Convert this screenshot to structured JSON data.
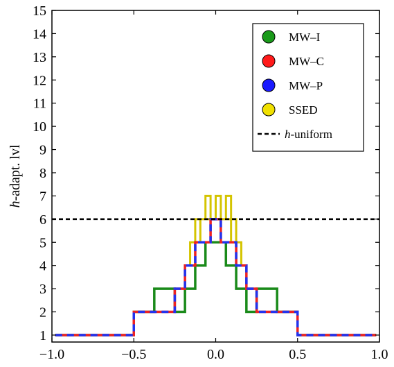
{
  "chart_data": {
    "type": "line",
    "xlabel": "",
    "ylabel": "h-adapt. lvl",
    "ylabel_italic_prefix": "h",
    "ylabel_rest": "-adapt. lvl",
    "xlim": [
      -1.0,
      1.0
    ],
    "ylim": [
      0.7,
      15.0
    ],
    "xticks": [
      -1.0,
      -0.5,
      0.0,
      0.5,
      1.0
    ],
    "xtick_labels": [
      "−1.0",
      "−0.5",
      "0.0",
      "0.5",
      "1.0"
    ],
    "yticks": [
      1,
      2,
      3,
      4,
      5,
      6,
      7,
      8,
      9,
      10,
      11,
      12,
      13,
      14,
      15
    ],
    "ytick_labels": [
      "1",
      "2",
      "3",
      "4",
      "5",
      "6",
      "7",
      "8",
      "9",
      "10",
      "11",
      "12",
      "13",
      "14",
      "15"
    ],
    "grid": false,
    "legend_position": "top-right",
    "series": [
      {
        "name": "MW–I",
        "color": "#1a8a1a",
        "style": "solid",
        "width": 3.5,
        "marker_color": "#1a9a1a",
        "x": [
          -0.98,
          -0.5,
          -0.5,
          -0.375,
          -0.375,
          -0.25,
          -0.25,
          -0.1875,
          -0.1875,
          -0.125,
          -0.125,
          -0.0625,
          -0.0625,
          0.0625,
          0.0625,
          0.125,
          0.125,
          0.1875,
          0.1875,
          0.25,
          0.25,
          0.375,
          0.375,
          0.5,
          0.5,
          0.98
        ],
        "y": [
          1,
          1,
          2,
          2,
          3,
          3,
          2,
          2,
          3,
          3,
          4,
          4,
          5,
          5,
          4,
          4,
          3,
          3,
          2,
          2,
          3,
          3,
          2,
          2,
          1,
          1
        ]
      },
      {
        "name": "SSED",
        "color": "#d4c400",
        "style": "solid",
        "width": 3,
        "marker_color": "#f0e000",
        "x": [
          -0.09375,
          -0.09375,
          -0.0625,
          -0.0625,
          -0.03125,
          -0.03125,
          0.0,
          0.0,
          0.03125,
          0.03125,
          0.0625,
          0.0625,
          0.09375,
          0.09375,
          0.125,
          0.125,
          0.15625,
          0.15625,
          0.125,
          0.125,
          0.09375,
          0.09375,
          -0.09375,
          -0.09375,
          -0.125,
          -0.125,
          -0.15625,
          -0.15625,
          -0.125,
          -0.125,
          -0.09375
        ],
        "y": [
          5,
          6,
          6,
          7,
          7,
          6,
          6,
          7,
          7,
          6,
          6,
          7,
          7,
          6,
          6,
          5,
          5,
          4,
          4,
          5,
          5,
          6,
          6,
          5,
          5,
          4,
          4,
          5,
          5,
          6,
          6
        ]
      },
      {
        "name": "MW–C",
        "color": "#ee2222",
        "style": "solid",
        "width": 3.5,
        "marker_color": "#ff1a1a",
        "x": [
          -0.98,
          -0.5,
          -0.5,
          -0.25,
          -0.25,
          -0.1875,
          -0.1875,
          -0.125,
          -0.125,
          -0.0625,
          -0.0625,
          -0.03125,
          -0.03125,
          0.03125,
          0.03125,
          0.0625,
          0.0625,
          0.125,
          0.125,
          0.1875,
          0.1875,
          0.25,
          0.25,
          0.5,
          0.5,
          0.98
        ],
        "y": [
          1,
          1,
          2,
          2,
          3,
          3,
          4,
          4,
          5,
          5,
          5,
          5,
          6,
          6,
          5,
          5,
          5,
          5,
          4,
          4,
          3,
          3,
          2,
          2,
          1,
          1
        ]
      },
      {
        "name": "MW–P",
        "color": "#2233ee",
        "style": "dashed",
        "width": 3.5,
        "marker_color": "#1a1aff",
        "x": [
          -0.98,
          -0.5,
          -0.5,
          -0.25,
          -0.25,
          -0.1875,
          -0.1875,
          -0.125,
          -0.125,
          -0.0625,
          -0.0625,
          -0.03125,
          -0.03125,
          0.03125,
          0.03125,
          0.0625,
          0.0625,
          0.125,
          0.125,
          0.1875,
          0.1875,
          0.25,
          0.25,
          0.5,
          0.5,
          0.98
        ],
        "y": [
          1,
          1,
          2,
          2,
          3,
          3,
          4,
          4,
          5,
          5,
          5,
          5,
          6,
          6,
          5,
          5,
          5,
          5,
          4,
          4,
          3,
          3,
          2,
          2,
          1,
          1
        ]
      },
      {
        "name": "h-uniform",
        "name_italic_prefix": "h",
        "name_rest": "-uniform",
        "color": "#000000",
        "style": "dotted",
        "width": 2.5,
        "x": [
          -1.0,
          1.0
        ],
        "y": [
          6,
          6
        ]
      }
    ]
  }
}
